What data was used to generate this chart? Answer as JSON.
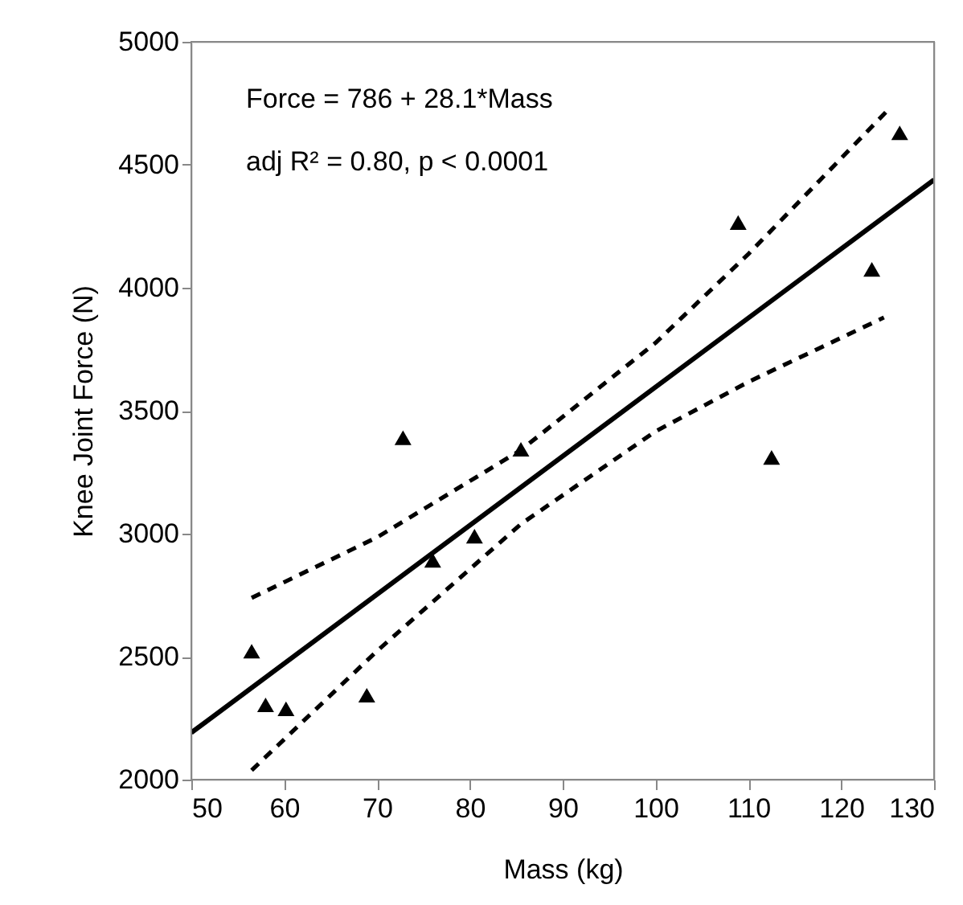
{
  "chart_data": {
    "type": "scatter",
    "xlabel": "Mass (kg)",
    "ylabel": "Knee Joint Force (N)",
    "xlim": [
      50,
      130
    ],
    "xticks": [
      50,
      60,
      70,
      80,
      90,
      100,
      110,
      120,
      130
    ],
    "ylim": [
      2000,
      5000
    ],
    "yticks": [
      2000,
      2500,
      3000,
      3500,
      4000,
      4500,
      5000
    ],
    "grid": false,
    "annotations": [
      "Force = 786 + 28.1*Mass",
      "adj R² = 0.80, p < 0.0001"
    ],
    "series": [
      {
        "color": "#000000",
        "marker": "triangle",
        "x": [
          56.5,
          58.0,
          60.2,
          68.9,
          72.8,
          76.0,
          80.5,
          85.5,
          108.9,
          112.5,
          123.3,
          126.3
        ],
        "values": [
          2522,
          2304,
          2288,
          2343,
          3390,
          2892,
          2990,
          3343,
          4265,
          3310,
          4075,
          4630
        ]
      },
      {
        "type": "line",
        "color": "#000000",
        "line_style": "solid",
        "x": [
          50,
          130
        ],
        "values": [
          2191,
          4439
        ]
      },
      {
        "type": "line",
        "color": "#000000",
        "line_style": "dashed",
        "x": [
          56.5,
          70,
          85.5,
          100,
          110,
          125.2
        ],
        "values": [
          2739,
          2985,
          3340,
          3776,
          4137,
          4729
        ]
      },
      {
        "type": "line",
        "color": "#000000",
        "line_style": "dashed",
        "x": [
          56.5,
          70,
          85.5,
          100,
          110,
          124.6
        ],
        "values": [
          2038,
          2523,
          3039,
          3416,
          3617,
          3879
        ]
      }
    ]
  }
}
